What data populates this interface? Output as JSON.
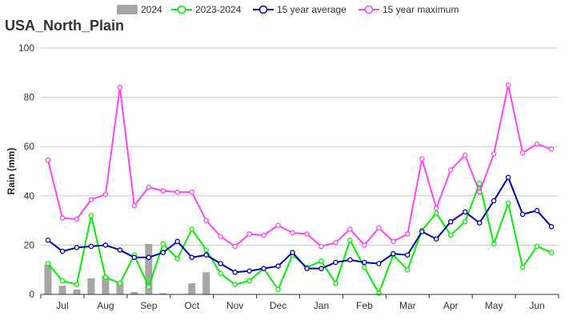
{
  "chart_data": {
    "type": "bar",
    "title": "USA_North_Plain",
    "xlabel": "",
    "ylabel": "Rain (mm)",
    "ylim": [
      0,
      100
    ],
    "yticks": [
      0,
      20,
      40,
      60,
      80,
      100
    ],
    "grid": "horizontal",
    "legend_position": "top",
    "month_labels": [
      "Jul",
      "Aug",
      "Sep",
      "Oct",
      "Nov",
      "Dec",
      "Jan",
      "Feb",
      "Mar",
      "Apr",
      "May",
      "Jun"
    ],
    "periods_per_month": 3,
    "series": [
      {
        "name": "2024",
        "kind": "bar",
        "color": "#a6a6a6",
        "values": [
          12.0,
          3.5,
          2.0,
          6.5,
          7.5,
          5.0,
          1.0,
          20.5,
          0.5,
          0.0,
          4.5,
          9.0
        ]
      },
      {
        "name": "2023-2024",
        "kind": "line",
        "color": "#00ee00",
        "values": [
          12.5,
          5.5,
          4.0,
          32.0,
          7.0,
          4.5,
          16.0,
          3.0,
          20.5,
          14.5,
          26.5,
          18.0,
          8.5,
          4.0,
          5.5,
          10.5,
          2.0,
          16.0,
          11.0,
          13.5,
          4.5,
          22.0,
          11.0,
          0.5,
          16.0,
          10.0,
          26.0,
          33.0,
          24.0,
          29.5,
          45.0,
          20.5,
          37.0,
          11.0,
          19.5,
          17.0
        ]
      },
      {
        "name": "15 year average",
        "kind": "line",
        "color": "#0000aa",
        "values": [
          22.0,
          17.5,
          19.0,
          19.5,
          20.0,
          18.0,
          15.0,
          15.0,
          17.0,
          21.5,
          15.0,
          16.0,
          12.5,
          9.0,
          9.5,
          10.5,
          11.5,
          17.0,
          10.5,
          10.5,
          13.0,
          14.0,
          13.0,
          12.5,
          16.5,
          16.0,
          25.5,
          22.5,
          29.5,
          33.5,
          29.0,
          38.0,
          47.5,
          32.5,
          34.0,
          27.5
        ]
      },
      {
        "name": "15 year maximum",
        "kind": "line",
        "color": "#ff44ff",
        "values": [
          54.5,
          31.0,
          30.5,
          38.5,
          40.5,
          84.0,
          36.0,
          43.5,
          42.0,
          41.5,
          41.5,
          30.0,
          23.5,
          19.5,
          24.5,
          24.0,
          28.0,
          25.0,
          24.5,
          19.5,
          21.0,
          26.5,
          20.0,
          27.0,
          21.5,
          24.5,
          55.0,
          35.0,
          50.5,
          56.5,
          41.5,
          57.0,
          85.0,
          57.5,
          61.0,
          59.0
        ]
      }
    ]
  }
}
